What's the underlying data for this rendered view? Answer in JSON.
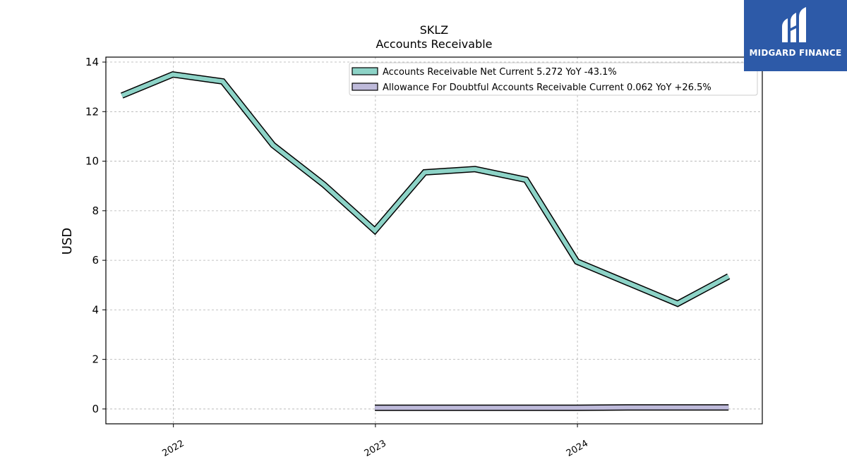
{
  "chart_data": {
    "type": "line",
    "title": "SKLZ",
    "subtitle": "Accounts Receivable",
    "ylabel": "USD",
    "xlabel": "",
    "xlim": [
      "2021-09-01",
      "2024-11-30"
    ],
    "ylim": [
      -0.6,
      14.2
    ],
    "yticks": [
      0,
      2,
      4,
      6,
      8,
      10,
      12,
      14
    ],
    "xticks": [
      {
        "label": "2022",
        "date": "2022-01-01"
      },
      {
        "label": "2023",
        "date": "2023-01-01"
      },
      {
        "label": "2024",
        "date": "2024-01-01"
      }
    ],
    "grid": true,
    "legend_position": "top-right",
    "series": [
      {
        "name": "Accounts Receivable Net Current",
        "legend_label": "Accounts Receivable Net Current  5.272 YoY -43.1%",
        "color": "#8dd3c7",
        "x": [
          "2021-09-30",
          "2021-12-31",
          "2022-03-31",
          "2022-06-30",
          "2022-09-30",
          "2022-12-31",
          "2023-03-31",
          "2023-06-30",
          "2023-09-30",
          "2023-12-31",
          "2024-06-30",
          "2024-09-30"
        ],
        "y": [
          12.65,
          13.5,
          13.22,
          10.65,
          9.05,
          7.2,
          9.55,
          9.68,
          9.25,
          5.95,
          4.25,
          5.35
        ]
      },
      {
        "name": "Allowance For Doubtful Accounts Receivable Current",
        "legend_label": "Allowance For Doubtful Accounts Receivable Current  0.062 YoY +26.5%",
        "color": "#bebada",
        "x": [
          "2022-12-31",
          "2023-03-31",
          "2023-06-30",
          "2023-09-30",
          "2023-12-31",
          "2024-03-31",
          "2024-06-30",
          "2024-09-30"
        ],
        "y": [
          0.049,
          0.049,
          0.049,
          0.049,
          0.049,
          0.062,
          0.062,
          0.062
        ]
      }
    ]
  },
  "logo": {
    "text": "MIDGARD FINANCE",
    "color": "#2d5aa8"
  }
}
